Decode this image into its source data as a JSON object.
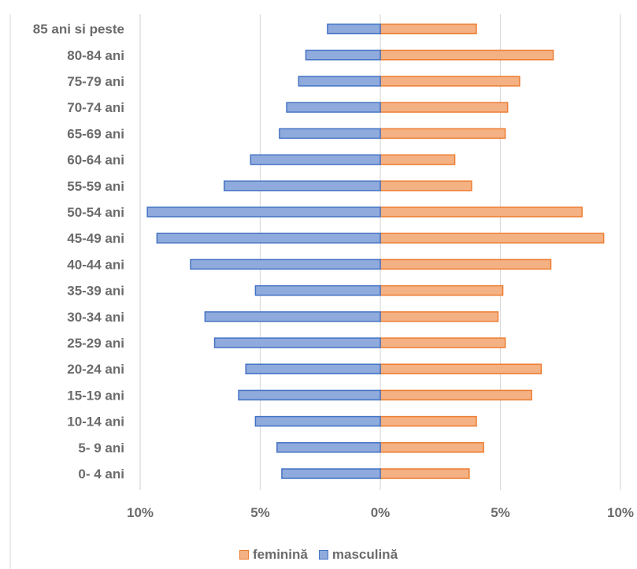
{
  "chart_data": {
    "type": "bar",
    "orientation": "horizontal",
    "title": "",
    "xlabel": "",
    "ylabel": "",
    "categories": [
      "85 ani si peste",
      "80-84 ani",
      "75-79 ani",
      "70-74 ani",
      "65-69 ani",
      "60-64 ani",
      "55-59 ani",
      "50-54 ani",
      "45-49 ani",
      "40-44 ani",
      "35-39 ani",
      "30-34 ani",
      "25-29 ani",
      "20-24 ani",
      "15-19 ani",
      "10-14 ani",
      "5- 9 ani",
      "0- 4 ani"
    ],
    "series": [
      {
        "name": "feminină",
        "side": "right",
        "color": "#F4B183",
        "stroke": "#ED7D31",
        "values": [
          4.0,
          7.2,
          5.8,
          5.3,
          5.2,
          3.1,
          3.8,
          8.4,
          9.3,
          7.1,
          5.1,
          4.9,
          5.2,
          6.7,
          6.3,
          4.0,
          4.3,
          3.7
        ]
      },
      {
        "name": "masculină",
        "side": "left",
        "color": "#8FAADC",
        "stroke": "#4472C4",
        "values": [
          2.2,
          3.1,
          3.4,
          3.9,
          4.2,
          5.4,
          6.5,
          9.7,
          9.3,
          7.9,
          5.2,
          7.3,
          6.9,
          5.6,
          5.9,
          5.2,
          4.3,
          4.1
        ]
      }
    ],
    "xlim": [
      -10,
      10
    ],
    "x_ticks": [
      -10,
      -5,
      0,
      5,
      10
    ],
    "x_tick_labels": [
      "10%",
      "5%",
      "0%",
      "5%",
      "10%"
    ],
    "grid": "vertical",
    "legend_position": "bottom"
  },
  "legend": {
    "female_label": "feminină",
    "male_label": "masculină"
  }
}
